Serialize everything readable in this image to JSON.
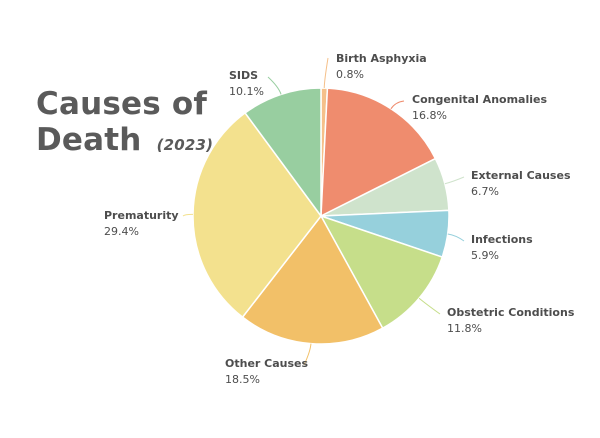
{
  "chart_data": {
    "type": "pie",
    "title": "Causes of Death",
    "subtitle": "(2023)",
    "slices": [
      {
        "label": "Birth Asphyxia",
        "value": 0.8,
        "value_label": "0.8%",
        "color": "#f5c08a"
      },
      {
        "label": "Congenital Anomalies",
        "value": 16.8,
        "value_label": "16.8%",
        "color": "#ef8c6e"
      },
      {
        "label": "External Causes",
        "value": 6.7,
        "value_label": "6.7%",
        "color": "#cfe3cc"
      },
      {
        "label": "Infections",
        "value": 5.9,
        "value_label": "5.9%",
        "color": "#96d0dc"
      },
      {
        "label": "Obstetric Conditions",
        "value": 11.8,
        "value_label": "11.8%",
        "color": "#c6de8a"
      },
      {
        "label": "Other Causes",
        "value": 18.5,
        "value_label": "18.5%",
        "color": "#f2c068"
      },
      {
        "label": "Prematurity",
        "value": 29.4,
        "value_label": "29.4%",
        "color": "#f3e18e"
      },
      {
        "label": "SIDS",
        "value": 10.1,
        "value_label": "10.1%",
        "color": "#98cea0"
      }
    ]
  }
}
